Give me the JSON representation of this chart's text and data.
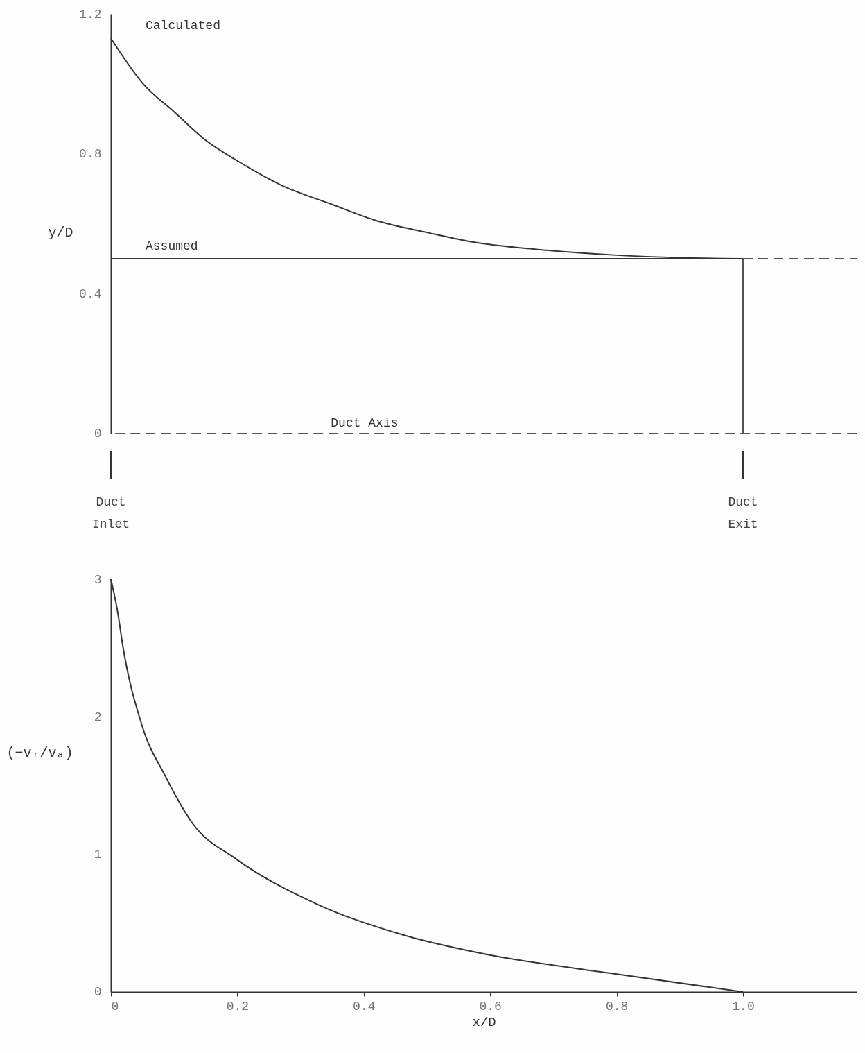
{
  "chart_data": [
    {
      "type": "line",
      "ylabel": "y/D",
      "tick_labels": "y",
      "xlim": [
        0,
        1.18
      ],
      "ylim": [
        0,
        1.2
      ],
      "yticks": [
        0,
        0.4,
        0.8,
        1.2
      ],
      "series": [
        {
          "name": "Calculated",
          "color": "#333333",
          "x": [
            0,
            0.051,
            0.1,
            0.149,
            0.2,
            0.27,
            0.35,
            0.418,
            0.5,
            0.565,
            0.69,
            0.8,
            0.9,
            1.0
          ],
          "values": [
            1.13,
            1.0,
            0.92,
            0.84,
            0.78,
            0.71,
            0.655,
            0.61,
            0.575,
            0.55,
            0.524,
            0.51,
            0.503,
            0.5
          ]
        },
        {
          "name": "Assumed",
          "color": "#333333",
          "x": [
            0,
            1
          ],
          "values": [
            0.5,
            0.5
          ]
        },
        {
          "color": "#555555",
          "line_style": "dashed",
          "x": [
            1,
            1.18
          ],
          "values": [
            0.5,
            0.5
          ]
        },
        {
          "color": "#555555",
          "x": [
            1,
            1
          ],
          "values": [
            0,
            0.5
          ]
        }
      ],
      "ref_lines": [
        {
          "axis": "y",
          "value": 0,
          "label": "Duct Axis",
          "color": "#555555",
          "line_style": "dashed"
        }
      ],
      "annotations": [
        "Duct Inlet",
        "Duct Exit"
      ]
    },
    {
      "type": "line",
      "xlabel": "x/D",
      "ylabel": "(−vᵣ/vₐ)",
      "xlim": [
        0,
        1.18
      ],
      "ylim": [
        0,
        3
      ],
      "xticks": [
        0,
        0.2,
        0.4,
        0.6,
        0.8,
        {
          "value": 1,
          "label": "1.0"
        }
      ],
      "yticks": [
        0,
        1,
        2,
        3
      ],
      "series": [
        {
          "color": "#333333",
          "x": [
            0,
            0.0115,
            0.018,
            0.049,
            0.086,
            0.13,
            0.197,
            0.33,
            0.466,
            0.587,
            0.8,
            1.0
          ],
          "values": [
            3,
            2.74,
            2.54,
            1.94,
            1.57,
            1.22,
            0.97,
            0.63,
            0.41,
            0.28,
            0.13,
            0
          ]
        }
      ]
    }
  ]
}
